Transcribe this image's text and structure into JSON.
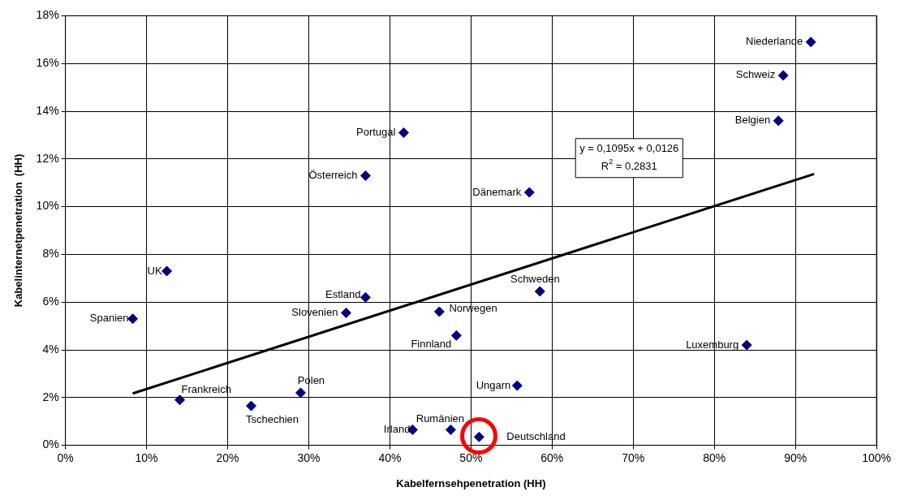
{
  "chart_data": {
    "type": "scatter",
    "xlabel": "Kabelfernsehpenetration (HH)",
    "ylabel": "Kabelinternetpenetration  (HH)",
    "xlim": [
      0,
      100
    ],
    "xticks": [
      {
        "value": 0,
        "label": "0%"
      },
      {
        "value": 10,
        "label": "10%"
      },
      {
        "value": 20,
        "label": "20%"
      },
      {
        "value": 30,
        "label": "30%"
      },
      {
        "value": 40,
        "label": "40%"
      },
      {
        "value": 50,
        "label": "50%"
      },
      {
        "value": 60,
        "label": "60%"
      },
      {
        "value": 70,
        "label": "70%"
      },
      {
        "value": 80,
        "label": "80%"
      },
      {
        "value": 90,
        "label": "90%"
      },
      {
        "value": 100,
        "label": "100%"
      }
    ],
    "ylim": [
      0,
      18
    ],
    "yticks": [
      {
        "value": 0,
        "label": "0%"
      },
      {
        "value": 2,
        "label": "2%"
      },
      {
        "value": 4,
        "label": "4%"
      },
      {
        "value": 6,
        "label": "6%"
      },
      {
        "value": 8,
        "label": "8%"
      },
      {
        "value": 10,
        "label": "10%"
      },
      {
        "value": 12,
        "label": "12%"
      },
      {
        "value": 14,
        "label": "14%"
      },
      {
        "value": 16,
        "label": "16%"
      },
      {
        "value": 18,
        "label": "18%"
      }
    ],
    "grid": true,
    "legend": false,
    "marker": "diamond",
    "series": [
      {
        "type": "scatter",
        "color": "#000080",
        "x": [
          91.9,
          88.5,
          87.9,
          41.7,
          37.0,
          57.2,
          12.5,
          8.3,
          37.0,
          34.6,
          46.1,
          58.5,
          48.2,
          84.0,
          55.7,
          14.1,
          29.0,
          22.9,
          42.8,
          47.5,
          51.0
        ],
        "values": [
          16.9,
          15.5,
          13.6,
          13.1,
          11.3,
          10.6,
          7.3,
          5.3,
          6.2,
          5.55,
          5.6,
          6.45,
          4.6,
          4.2,
          2.5,
          1.9,
          2.2,
          1.65,
          0.65,
          0.65,
          0.35
        ]
      },
      {
        "type": "line",
        "color": "#000000",
        "marker": "none",
        "x": [
          8.3,
          92.3
        ],
        "values": [
          2.17,
          11.37
        ]
      }
    ],
    "annotations": [
      {
        "text": "Niederlande",
        "x": 91.9,
        "y": 16.9
      },
      {
        "text": "Schweiz",
        "x": 88.5,
        "y": 15.5
      },
      {
        "text": "Belgien",
        "x": 87.9,
        "y": 13.6
      },
      {
        "text": "Portugal",
        "x": 41.7,
        "y": 13.1
      },
      {
        "text": "Österreich",
        "x": 37.0,
        "y": 11.3
      },
      {
        "text": "Dänemark",
        "x": 57.2,
        "y": 10.6
      },
      {
        "text": "UK",
        "x": 12.5,
        "y": 7.3
      },
      {
        "text": "Spanien",
        "x": 8.3,
        "y": 5.3
      },
      {
        "text": "Estland",
        "x": 37.0,
        "y": 6.2
      },
      {
        "text": "Slovenien",
        "x": 34.6,
        "y": 5.55
      },
      {
        "text": "Norwegen",
        "x": 46.1,
        "y": 5.6
      },
      {
        "text": "Schweden",
        "x": 58.5,
        "y": 6.45
      },
      {
        "text": "Finnland",
        "x": 48.2,
        "y": 4.6
      },
      {
        "text": "Luxemburg",
        "x": 84.0,
        "y": 4.2
      },
      {
        "text": "Ungarn",
        "x": 55.7,
        "y": 2.5
      },
      {
        "text": "Frankreich",
        "x": 14.1,
        "y": 1.9
      },
      {
        "text": "Polen",
        "x": 29.0,
        "y": 2.2
      },
      {
        "text": "Tschechien",
        "x": 22.9,
        "y": 1.65
      },
      {
        "text": "Irland",
        "x": 42.8,
        "y": 0.65
      },
      {
        "text": "Rumänien",
        "x": 47.5,
        "y": 0.65
      },
      {
        "text": "Deutschland",
        "x": 51.0,
        "y": 0.35
      },
      "y = 0,1095x + 0,0126",
      "R$^{2}$ = 0,2831"
    ]
  }
}
